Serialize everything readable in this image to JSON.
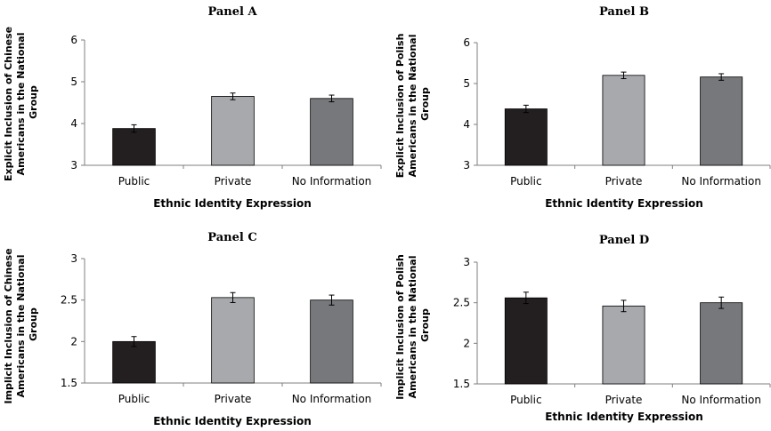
{
  "chart_data": [
    {
      "type": "bar",
      "title": "Panel A",
      "ylabel_lines": [
        "Explicit Inclusion of Chinese",
        "Americans in the National",
        "Group"
      ],
      "xlabel": "Ethnic Identity Expression",
      "categories": [
        "Public",
        "Private",
        "No Information"
      ],
      "values": [
        3.88,
        4.65,
        4.6
      ],
      "errors": [
        0.09,
        0.08,
        0.08
      ],
      "colors": [
        "#231f20",
        "#a7a9ac",
        "#77787b"
      ],
      "ylim": [
        3,
        6
      ],
      "yticks": [
        "3",
        "4",
        "5",
        "6"
      ],
      "ytick_values": [
        3,
        4,
        5,
        6
      ],
      "grid": false
    },
    {
      "type": "bar",
      "title": "Panel B",
      "ylabel_lines": [
        "Explicit Inclusion of Polish",
        "Americans in the National",
        "Group"
      ],
      "xlabel": "Ethnic Identity Expression",
      "categories": [
        "Public",
        "Private",
        "No Information"
      ],
      "values": [
        4.38,
        5.2,
        5.16
      ],
      "errors": [
        0.09,
        0.08,
        0.08
      ],
      "colors": [
        "#231f20",
        "#a7a9ac",
        "#77787b"
      ],
      "ylim": [
        3,
        6
      ],
      "yticks": [
        "3",
        "4",
        "5",
        "6"
      ],
      "ytick_values": [
        3,
        4,
        5,
        6
      ],
      "grid": false
    },
    {
      "type": "bar",
      "title": "Panel C",
      "ylabel_lines": [
        "Implicit Inclusion of Chinese",
        "Americans in the National",
        "Group"
      ],
      "xlabel": "Ethnic Identity Expression",
      "categories": [
        "Public",
        "Private",
        "No Information"
      ],
      "values": [
        2.0,
        2.53,
        2.5
      ],
      "errors": [
        0.06,
        0.06,
        0.06
      ],
      "colors": [
        "#231f20",
        "#a7a9ac",
        "#77787b"
      ],
      "ylim": [
        1.5,
        3
      ],
      "yticks": [
        "1.5",
        "2",
        "2.5",
        "3"
      ],
      "ytick_values": [
        1.5,
        2,
        2.5,
        3
      ],
      "grid": false
    },
    {
      "type": "bar",
      "title": "Panel D",
      "ylabel_lines": [
        "Implicit Inclusion of Polish",
        "Americans in the National",
        "Group"
      ],
      "xlabel": "Ethnic Identity Expression",
      "categories": [
        "Public",
        "Private",
        "No Information"
      ],
      "values": [
        2.56,
        2.46,
        2.5
      ],
      "errors": [
        0.07,
        0.07,
        0.07
      ],
      "colors": [
        "#231f20",
        "#a7a9ac",
        "#77787b"
      ],
      "ylim": [
        1.5,
        3
      ],
      "yticks": [
        "1.5",
        "2",
        "2.5",
        "3"
      ],
      "ytick_values": [
        1.5,
        2,
        2.5,
        3
      ],
      "grid": false
    }
  ]
}
